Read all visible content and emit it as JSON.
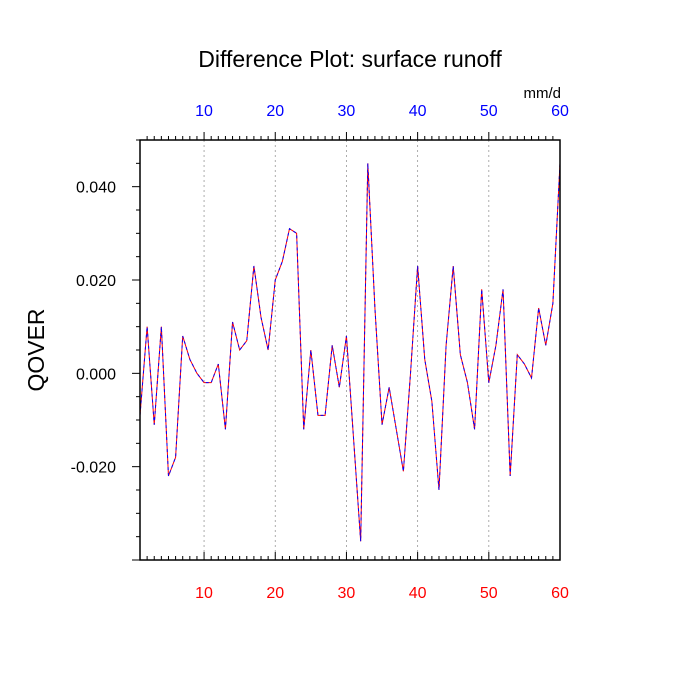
{
  "chart_data": {
    "type": "line",
    "title": "Difference Plot: surface runoff",
    "ylabel": "QOVER",
    "top_axis_unit": "mm/d",
    "xlim": [
      1,
      60
    ],
    "ylim": [
      -0.04,
      0.05
    ],
    "x_ticks": [
      10,
      20,
      30,
      40,
      50,
      60
    ],
    "x_tick_labels": [
      "10",
      "20",
      "30",
      "40",
      "50",
      "60"
    ],
    "y_ticks": [
      -0.02,
      0.0,
      0.02,
      0.04
    ],
    "y_tick_labels": [
      "-0.020",
      "0.000",
      "0.020",
      "0.040"
    ],
    "grid": "vertical dashed at x ticks",
    "colors": {
      "bottom_ticks": "#ff0000",
      "top_ticks": "#0000ff",
      "series_a": "#ff0000",
      "series_b": "#0000ff"
    },
    "x": [
      1,
      2,
      3,
      4,
      5,
      6,
      7,
      8,
      9,
      10,
      11,
      12,
      13,
      14,
      15,
      16,
      17,
      18,
      19,
      20,
      21,
      22,
      23,
      24,
      25,
      26,
      27,
      28,
      29,
      30,
      31,
      32,
      33,
      34,
      35,
      36,
      37,
      38,
      39,
      40,
      41,
      42,
      43,
      44,
      45,
      46,
      47,
      48,
      49,
      50,
      51,
      52,
      53,
      54,
      55,
      56,
      57,
      58,
      59,
      60
    ],
    "series": [
      {
        "values": [
          -0.009,
          0.01,
          -0.011,
          0.01,
          -0.022,
          -0.018,
          0.008,
          0.003,
          0.0,
          -0.002,
          -0.002,
          0.002,
          -0.012,
          0.011,
          0.005,
          0.007,
          0.023,
          0.012,
          0.005,
          0.02,
          0.024,
          0.031,
          0.03,
          -0.012,
          0.005,
          -0.009,
          -0.009,
          0.006,
          -0.003,
          0.008,
          -0.014,
          -0.036,
          0.045,
          0.014,
          -0.011,
          -0.003,
          -0.012,
          -0.021,
          0.0,
          0.023,
          0.003,
          -0.006,
          -0.025,
          0.006,
          0.023,
          0.004,
          -0.002,
          -0.012,
          0.018,
          -0.002,
          0.006,
          0.018,
          -0.022,
          0.004,
          0.002,
          -0.001,
          0.014,
          0.006,
          0.015,
          0.045
        ]
      },
      {
        "values": [
          -0.009,
          0.01,
          -0.011,
          0.01,
          -0.022,
          -0.018,
          0.008,
          0.003,
          0.0,
          -0.002,
          -0.002,
          0.002,
          -0.012,
          0.011,
          0.005,
          0.007,
          0.023,
          0.012,
          0.005,
          0.02,
          0.024,
          0.031,
          0.03,
          -0.012,
          0.005,
          -0.009,
          -0.009,
          0.006,
          -0.003,
          0.008,
          -0.014,
          -0.036,
          0.045,
          0.014,
          -0.011,
          -0.003,
          -0.012,
          -0.021,
          0.0,
          0.023,
          0.003,
          -0.006,
          -0.025,
          0.006,
          0.023,
          0.004,
          -0.002,
          -0.012,
          0.018,
          -0.002,
          0.006,
          0.018,
          -0.022,
          0.004,
          0.002,
          -0.001,
          0.014,
          0.006,
          0.015,
          0.045
        ]
      }
    ]
  }
}
